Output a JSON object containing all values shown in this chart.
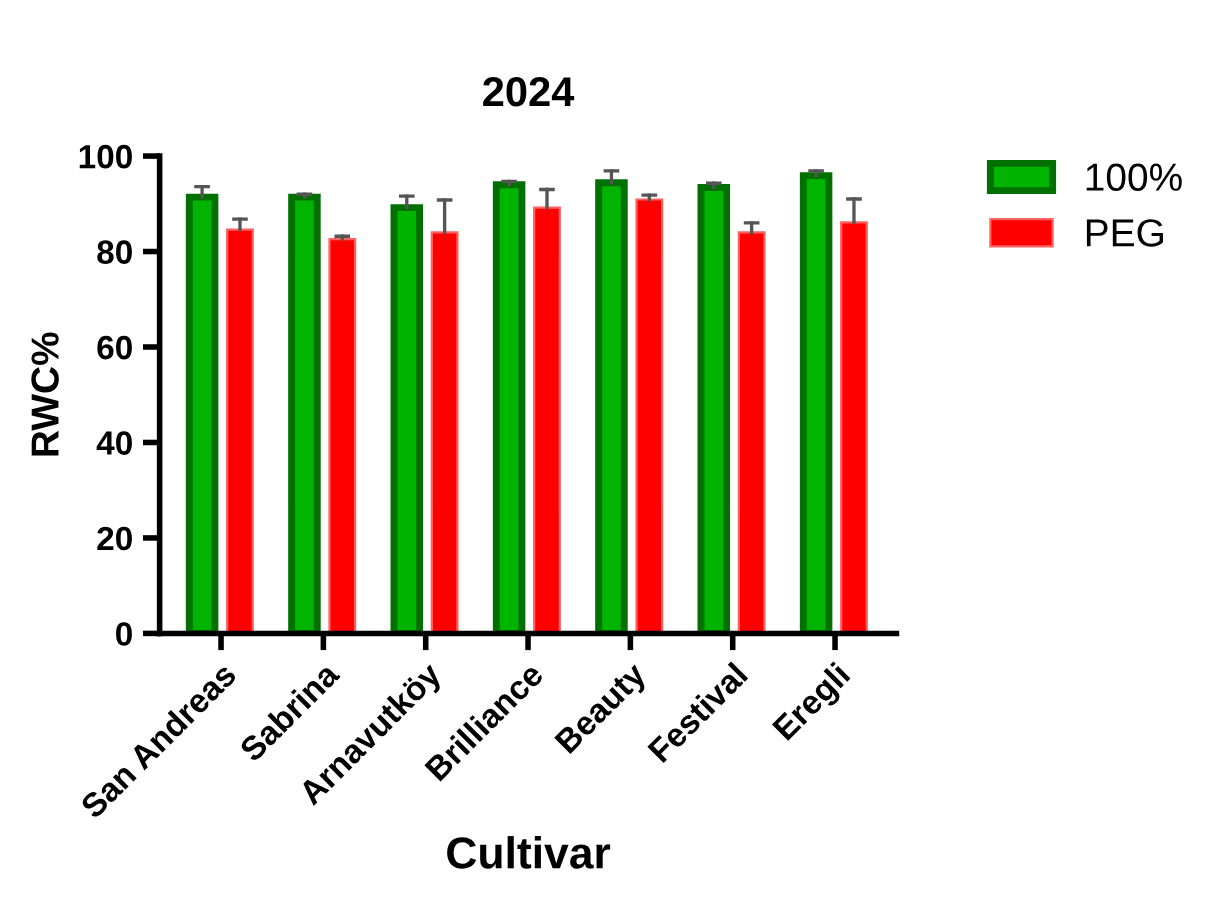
{
  "chart_data": {
    "type": "bar",
    "title": "2024",
    "xlabel": "Cultivar",
    "ylabel": "RWC%",
    "categories": [
      "San Andreas",
      "Sabrina",
      "Arnavutköy",
      "Brilliance",
      "Beauty",
      "Festival",
      "Eregli"
    ],
    "series": [
      {
        "name": "100%",
        "color": "#00b400",
        "values": [
          91.4,
          91.4,
          89.2,
          94.0,
          94.4,
          93.4,
          95.9
        ],
        "errors": [
          [
            91.4,
            93.6
          ],
          [
            91.4,
            92.0
          ],
          [
            89.2,
            91.6
          ],
          [
            94.0,
            94.7
          ],
          [
            94.4,
            96.9
          ],
          [
            93.4,
            94.3
          ],
          [
            95.9,
            96.9
          ]
        ]
      },
      {
        "name": "PEG",
        "color": "#ff0000",
        "values": [
          84.6,
          82.6,
          84.0,
          89.2,
          90.9,
          84.0,
          86.1
        ],
        "errors": [
          [
            84.6,
            86.8
          ],
          [
            82.6,
            83.2
          ],
          [
            84.0,
            90.8
          ],
          [
            89.2,
            93.0
          ],
          [
            90.9,
            91.8
          ],
          [
            84.0,
            86.0
          ],
          [
            86.1,
            91.0
          ]
        ]
      }
    ],
    "ylim": [
      0,
      100
    ],
    "yticks": [
      0,
      20,
      40,
      60,
      80,
      100
    ],
    "grid": false,
    "legend": "top right"
  }
}
